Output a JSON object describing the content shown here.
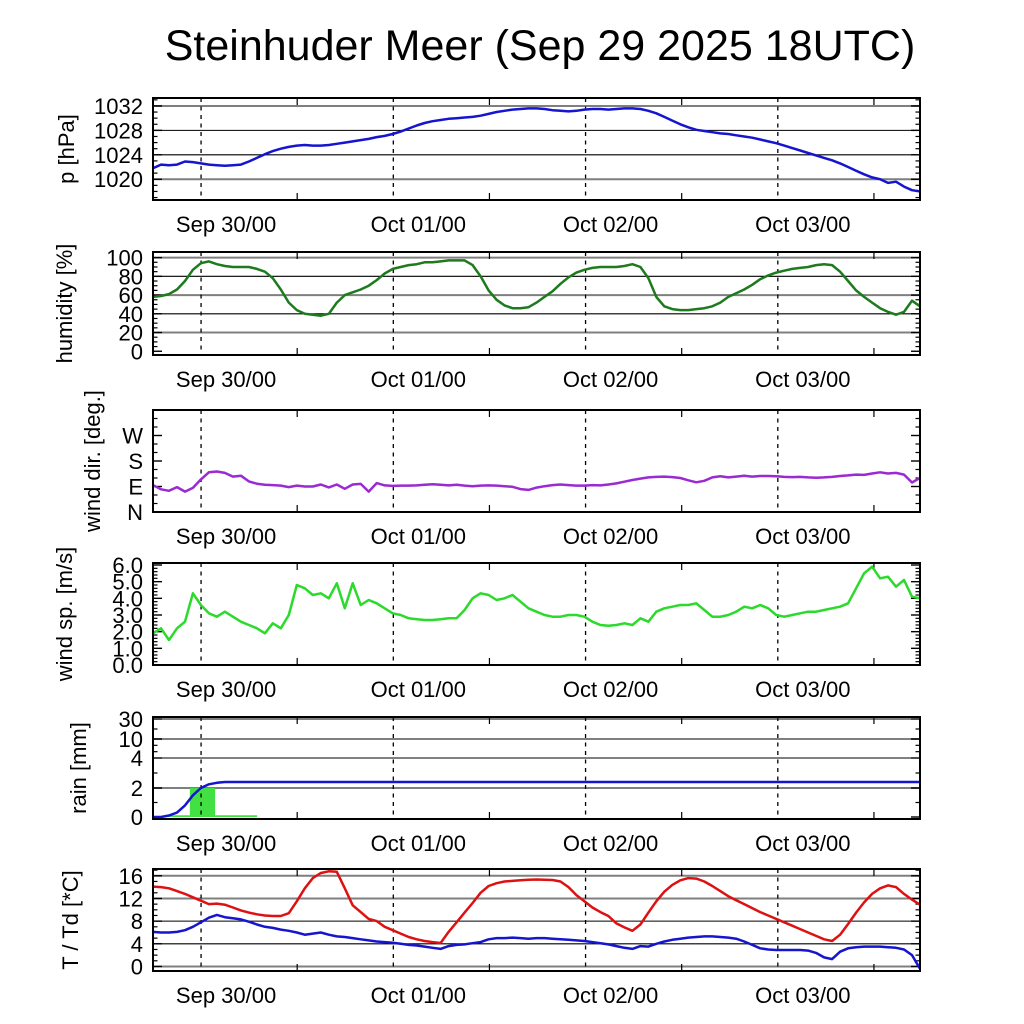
{
  "title": "Steinhuder Meer (Sep 29 2025 18UTC)",
  "colors": {
    "pressure_blue": "#1515d0",
    "humidity_dark_green": "#1d7a1d",
    "wind_dir_purple": "#9a2ad2",
    "wind_speed_green": "#2bda2b",
    "rain_line_blue": "#1515d0",
    "rain_bar_green": "#42e042",
    "temp_red": "#dd1111",
    "dewpoint_blue": "#1515d0",
    "grid_strong": "#7f7f7f",
    "grid_weak": "#000000",
    "frame": "#000000"
  },
  "x_axis": {
    "hours_total": 95.75,
    "start": "Sep 29 18:00 UTC",
    "day_ticks": [
      {
        "t": 6,
        "label": "Sep 30/00"
      },
      {
        "t": 30,
        "label": "Oct 01/00"
      },
      {
        "t": 54,
        "label": "Oct 02/00"
      },
      {
        "t": 78,
        "label": "Oct 03/00"
      }
    ],
    "noon_ticks": [
      18,
      42,
      66,
      90
    ]
  },
  "chart_data": [
    {
      "type": "line",
      "panel": "pressure",
      "ylabel": "p [hPa]",
      "ymin": 1016.6,
      "ymax": 1033.3,
      "yticks": [
        {
          "v": 1020,
          "l": "1020"
        },
        {
          "v": 1024,
          "l": "1024"
        },
        {
          "v": 1028,
          "l": "1028"
        },
        {
          "v": 1032,
          "l": "1032"
        }
      ],
      "minor_step": 1,
      "grid": [
        [
          1020,
          "strong"
        ],
        [
          1024,
          "weak"
        ],
        [
          1028,
          "weak"
        ],
        [
          1032,
          "strong"
        ]
      ],
      "label_x": 74,
      "series": [
        {
          "name": "pressure",
          "color": "pressure_blue",
          "values": [
            1021.8,
            1022.4,
            1022.3,
            1022.4,
            1022.9,
            1022.8,
            1022.6,
            1022.4,
            1022.3,
            1022.2,
            1022.3,
            1022.4,
            1022.9,
            1023.5,
            1024.1,
            1024.6,
            1025.0,
            1025.3,
            1025.5,
            1025.6,
            1025.5,
            1025.5,
            1025.6,
            1025.8,
            1026.0,
            1026.2,
            1026.4,
            1026.6,
            1026.9,
            1027.1,
            1027.4,
            1027.8,
            1028.3,
            1028.8,
            1029.2,
            1029.5,
            1029.7,
            1029.9,
            1030.0,
            1030.1,
            1030.2,
            1030.4,
            1030.7,
            1031.0,
            1031.2,
            1031.4,
            1031.5,
            1031.6,
            1031.6,
            1031.5,
            1031.3,
            1031.2,
            1031.1,
            1031.2,
            1031.4,
            1031.5,
            1031.5,
            1031.4,
            1031.5,
            1031.6,
            1031.6,
            1031.5,
            1031.2,
            1030.8,
            1030.2,
            1029.6,
            1029.0,
            1028.5,
            1028.1,
            1027.9,
            1027.7,
            1027.5,
            1027.4,
            1027.2,
            1027.0,
            1026.8,
            1026.5,
            1026.2,
            1025.9,
            1025.5,
            1025.1,
            1024.7,
            1024.3,
            1023.9,
            1023.5,
            1023.1,
            1022.6,
            1022.0,
            1021.4,
            1020.8,
            1020.3,
            1020.0,
            1019.4,
            1019.6,
            1018.8,
            1018.2,
            1018.0
          ]
        }
      ]
    },
    {
      "type": "line",
      "panel": "humidity",
      "ylabel": "humidity [%]",
      "ymin": -4,
      "ymax": 106,
      "yticks": [
        {
          "v": 0,
          "l": "0"
        },
        {
          "v": 20,
          "l": "20"
        },
        {
          "v": 40,
          "l": "40"
        },
        {
          "v": 60,
          "l": "60"
        },
        {
          "v": 80,
          "l": "80"
        },
        {
          "v": 100,
          "l": "100"
        }
      ],
      "minor_step": 5,
      "grid": [
        [
          20,
          "strong"
        ],
        [
          40,
          "weak"
        ],
        [
          60,
          "strong"
        ],
        [
          80,
          "weak"
        ],
        [
          100,
          "strong"
        ]
      ],
      "label_x": 72,
      "series": [
        {
          "name": "humidity",
          "color": "humidity_dark_green",
          "values": [
            58,
            59,
            61,
            66,
            75,
            87,
            94,
            96,
            93,
            91,
            90,
            90,
            90,
            88,
            85,
            78,
            66,
            52,
            44,
            40,
            39,
            38,
            40,
            52,
            60,
            63,
            66,
            70,
            76,
            83,
            88,
            90,
            92,
            93,
            95,
            95,
            96,
            97,
            97,
            97,
            92,
            80,
            65,
            55,
            49,
            46,
            46,
            47,
            52,
            58,
            64,
            72,
            79,
            84,
            87,
            89,
            90,
            90,
            90,
            91,
            93,
            90,
            78,
            58,
            48,
            45,
            44,
            44,
            45,
            46,
            48,
            52,
            58,
            62,
            66,
            71,
            77,
            81,
            84,
            86,
            88,
            89,
            90,
            92,
            93,
            92,
            85,
            75,
            65,
            58,
            52,
            46,
            42,
            39,
            42,
            54,
            48
          ]
        }
      ]
    },
    {
      "type": "line",
      "panel": "wind-direction",
      "ylabel": "wind dir. [deg.]",
      "ymin": 0,
      "ymax": 360,
      "yticks": [
        {
          "v": 0,
          "l": "N"
        },
        {
          "v": 90,
          "l": "E"
        },
        {
          "v": 180,
          "l": "S"
        },
        {
          "v": 270,
          "l": "W"
        }
      ],
      "minor_step": 30,
      "grid": [],
      "label_x": 100,
      "series": [
        {
          "name": "wind-dir",
          "color": "wind_dir_purple",
          "values": [
            95,
            80,
            75,
            88,
            72,
            85,
            115,
            140,
            143,
            138,
            125,
            128,
            108,
            100,
            96,
            95,
            93,
            88,
            93,
            90,
            90,
            97,
            87,
            97,
            82,
            97,
            99,
            72,
            102,
            94,
            92,
            93,
            93,
            94,
            96,
            98,
            96,
            94,
            96,
            93,
            91,
            93,
            94,
            93,
            91,
            89,
            81,
            78,
            86,
            91,
            95,
            97,
            95,
            93,
            93,
            95,
            94,
            97,
            101,
            107,
            113,
            118,
            122,
            124,
            125,
            123,
            120,
            112,
            105,
            110,
            122,
            126,
            122,
            125,
            128,
            125,
            127,
            127,
            126,
            124,
            123,
            124,
            122,
            121,
            122,
            124,
            127,
            129,
            132,
            131,
            136,
            140,
            136,
            138,
            132,
            104,
            120
          ]
        }
      ]
    },
    {
      "type": "line",
      "panel": "wind-speed",
      "ylabel": "wind sp. [m/s]",
      "ymin": 0,
      "ymax": 6.12,
      "yticks": [
        {
          "v": 0,
          "l": "0.0"
        },
        {
          "v": 1,
          "l": "1.0"
        },
        {
          "v": 2,
          "l": "2.0"
        },
        {
          "v": 3,
          "l": "3.0"
        },
        {
          "v": 4,
          "l": "4.0"
        },
        {
          "v": 5,
          "l": "5.0"
        },
        {
          "v": 6,
          "l": "6.0"
        }
      ],
      "minor_step": 0.2,
      "grid": [],
      "label_x": 72,
      "series": [
        {
          "name": "wind-speed",
          "color": "wind_speed_green",
          "values": [
            1.9,
            2.2,
            1.5,
            2.2,
            2.6,
            4.3,
            3.6,
            3.1,
            2.9,
            3.2,
            2.9,
            2.6,
            2.4,
            2.2,
            1.9,
            2.5,
            2.2,
            3.0,
            4.8,
            4.6,
            4.2,
            4.3,
            4.0,
            4.9,
            3.4,
            4.9,
            3.6,
            3.9,
            3.7,
            3.4,
            3.1,
            3.0,
            2.8,
            2.75,
            2.7,
            2.7,
            2.75,
            2.8,
            2.8,
            3.3,
            4.0,
            4.3,
            4.2,
            3.9,
            4.0,
            4.2,
            3.8,
            3.4,
            3.2,
            3.0,
            2.9,
            2.9,
            3.0,
            3.0,
            2.9,
            2.6,
            2.4,
            2.35,
            2.4,
            2.5,
            2.4,
            2.8,
            2.6,
            3.2,
            3.4,
            3.5,
            3.6,
            3.6,
            3.7,
            3.3,
            2.9,
            2.9,
            3.0,
            3.2,
            3.5,
            3.4,
            3.6,
            3.4,
            3.0,
            2.9,
            3.0,
            3.1,
            3.2,
            3.2,
            3.3,
            3.4,
            3.5,
            3.7,
            4.6,
            5.5,
            5.9,
            5.2,
            5.3,
            4.7,
            5.1,
            4.1,
            4.0
          ]
        }
      ]
    },
    {
      "type": "line+bar",
      "panel": "rain",
      "ylabel": "rain [mm]",
      "scale": "piecewise",
      "anchors": [
        [
          0,
          2
        ],
        [
          2,
          31
        ],
        [
          4,
          61
        ],
        [
          10,
          80
        ],
        [
          30,
          100
        ]
      ],
      "yticks": [
        {
          "v": 0,
          "l": "0"
        },
        {
          "v": 2,
          "l": "2"
        },
        {
          "v": 4,
          "l": "4"
        },
        {
          "v": 10,
          "l": "10"
        },
        {
          "v": 30,
          "l": "30"
        }
      ],
      "minor_values": [
        1,
        3,
        6,
        8,
        20
      ],
      "grid": [
        [
          2,
          "strong"
        ],
        [
          4,
          "weak"
        ],
        [
          10,
          "strong"
        ],
        [
          30,
          "weak"
        ]
      ],
      "label_x": 86,
      "bars": [
        {
          "t0": 1.9,
          "t1": 4.6,
          "v": 0.12
        },
        {
          "t0": 4.6,
          "t1": 7.75,
          "v": 2.0
        },
        {
          "t0": 7.75,
          "t1": 13.0,
          "v": 0.12
        }
      ],
      "bar_color": "rain_bar_green",
      "series": [
        {
          "name": "rain-accumulated",
          "color": "rain_line_blue",
          "values": [
            0,
            0,
            0.1,
            0.3,
            0.8,
            1.5,
            2.0,
            2.25,
            2.35,
            2.4,
            2.4,
            2.4,
            2.4,
            2.4,
            2.4,
            2.4,
            2.4,
            2.4,
            2.4,
            2.4,
            2.4,
            2.4,
            2.4,
            2.4,
            2.4,
            2.4,
            2.4,
            2.4,
            2.4,
            2.4,
            2.4,
            2.4,
            2.4,
            2.4,
            2.4,
            2.4,
            2.4,
            2.4,
            2.4,
            2.4,
            2.4,
            2.4,
            2.4,
            2.4,
            2.4,
            2.4,
            2.4,
            2.4,
            2.4,
            2.4,
            2.4,
            2.4,
            2.4,
            2.4,
            2.4,
            2.4,
            2.4,
            2.4,
            2.4,
            2.4,
            2.4,
            2.4,
            2.4,
            2.4,
            2.4,
            2.4,
            2.4,
            2.4,
            2.4,
            2.4,
            2.4,
            2.4,
            2.4,
            2.4,
            2.4,
            2.4,
            2.4,
            2.4,
            2.4,
            2.4,
            2.4,
            2.4,
            2.4,
            2.4,
            2.4,
            2.4,
            2.4,
            2.4,
            2.4,
            2.4,
            2.4,
            2.4,
            2.4,
            2.4,
            2.4,
            2.4,
            2.4
          ]
        }
      ]
    },
    {
      "type": "line",
      "panel": "temperature",
      "ylabel": "T / Td [*C]",
      "ymin": -0.8,
      "ymax": 17.2,
      "yticks": [
        {
          "v": 0,
          "l": "0"
        },
        {
          "v": 4,
          "l": "4"
        },
        {
          "v": 8,
          "l": "8"
        },
        {
          "v": 12,
          "l": "12"
        },
        {
          "v": 16,
          "l": "16"
        }
      ],
      "minor_step": 1,
      "grid": [
        [
          0,
          "strong"
        ],
        [
          4,
          "weak"
        ],
        [
          8,
          "weak"
        ],
        [
          12,
          "strong"
        ],
        [
          16,
          "strong"
        ]
      ],
      "label_x": 78,
      "series": [
        {
          "name": "temperature",
          "color": "temp_red",
          "values": [
            14.1,
            14.0,
            13.8,
            13.3,
            12.8,
            12.2,
            11.6,
            11.0,
            11.1,
            10.9,
            10.4,
            9.9,
            9.5,
            9.2,
            9.0,
            8.9,
            8.9,
            9.4,
            11.5,
            13.8,
            15.6,
            16.5,
            16.8,
            16.7,
            13.8,
            10.8,
            9.6,
            8.4,
            8.0,
            7.0,
            6.4,
            5.8,
            5.2,
            4.8,
            4.5,
            4.3,
            4.15,
            6.1,
            7.8,
            9.5,
            11.2,
            13.0,
            14.2,
            14.7,
            15.0,
            15.1,
            15.2,
            15.3,
            15.35,
            15.3,
            15.25,
            15.0,
            14.0,
            12.6,
            11.5,
            10.4,
            9.6,
            8.9,
            7.6,
            6.9,
            6.3,
            7.4,
            9.5,
            11.5,
            13.2,
            14.4,
            15.2,
            15.6,
            15.5,
            15.0,
            14.2,
            13.3,
            12.4,
            11.7,
            11.0,
            10.3,
            9.6,
            9.0,
            8.4,
            7.8,
            7.2,
            6.6,
            6.0,
            5.4,
            4.8,
            4.5,
            5.6,
            7.5,
            9.5,
            11.3,
            12.8,
            13.8,
            14.3,
            14.0,
            12.8,
            11.8,
            10.9
          ]
        },
        {
          "name": "dewpoint",
          "color": "dewpoint_blue",
          "values": [
            6.1,
            6.0,
            6.0,
            6.1,
            6.4,
            7.0,
            7.8,
            8.6,
            9.1,
            8.7,
            8.5,
            8.3,
            7.9,
            7.4,
            7.0,
            6.8,
            6.5,
            6.3,
            6.0,
            5.6,
            5.8,
            6.0,
            5.6,
            5.3,
            5.2,
            5.0,
            4.8,
            4.6,
            4.4,
            4.3,
            4.2,
            4.0,
            3.8,
            3.7,
            3.5,
            3.3,
            3.1,
            3.6,
            3.8,
            3.9,
            4.1,
            4.3,
            4.8,
            5.0,
            5.0,
            5.1,
            5.0,
            4.9,
            5.0,
            5.0,
            4.9,
            4.8,
            4.7,
            4.6,
            4.5,
            4.3,
            4.1,
            3.9,
            3.6,
            3.3,
            3.1,
            3.6,
            3.5,
            4.0,
            4.4,
            4.7,
            4.9,
            5.1,
            5.2,
            5.3,
            5.3,
            5.2,
            5.1,
            4.9,
            4.4,
            3.8,
            3.2,
            3.0,
            2.9,
            2.9,
            2.9,
            2.9,
            2.8,
            2.4,
            1.6,
            1.3,
            2.6,
            3.2,
            3.4,
            3.5,
            3.5,
            3.5,
            3.4,
            3.3,
            3.0,
            2.0,
            -0.4
          ]
        }
      ]
    }
  ]
}
